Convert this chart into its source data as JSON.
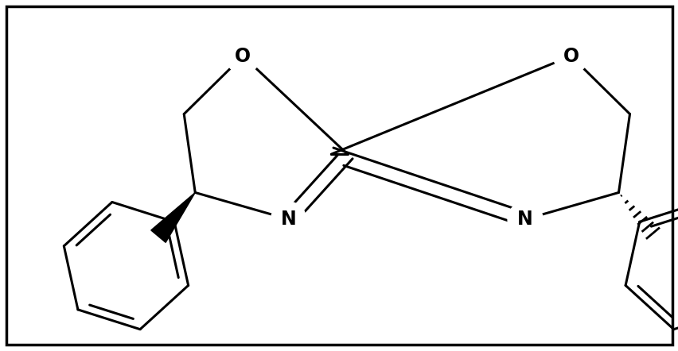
{
  "bg_color": "#ffffff",
  "line_color": "#000000",
  "bond_lw": 2.2,
  "fig_width": 8.53,
  "fig_height": 4.42,
  "dpi": 100,
  "border_color": "#000000",
  "border_lw": 2.5,
  "xlim": [
    0,
    8.53
  ],
  "ylim": [
    0,
    4.42
  ],
  "ring_r": 0.62,
  "ph_r": 0.75,
  "font_size": 17
}
